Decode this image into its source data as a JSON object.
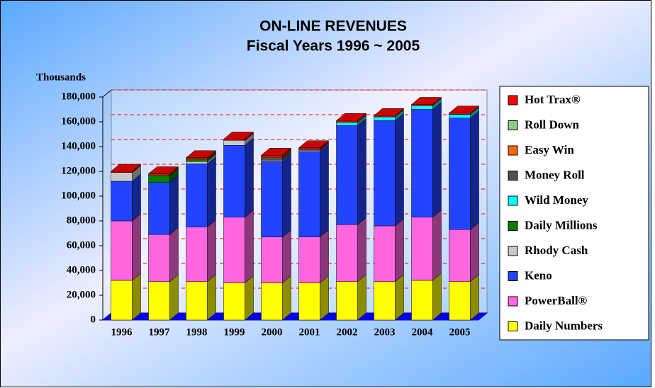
{
  "chart_data": {
    "type": "bar3d_stacked",
    "title": "ON-LINE REVENUES",
    "subtitle": "Fiscal Years 1996 ~ 2005",
    "y_label": "Thousands",
    "categories": [
      "1996",
      "1997",
      "1998",
      "1999",
      "2000",
      "2001",
      "2002",
      "2003",
      "2004",
      "2005"
    ],
    "series": [
      {
        "name": "Daily Numbers",
        "color": "#ffff00",
        "values": [
          32000,
          31000,
          31000,
          30000,
          30000,
          30000,
          31000,
          31000,
          32000,
          31000
        ]
      },
      {
        "name": "PowerBall®",
        "color": "#ff66e0",
        "values": [
          48000,
          38000,
          44000,
          53000,
          37000,
          37000,
          46000,
          45000,
          51000,
          42000
        ]
      },
      {
        "name": "Keno",
        "color": "#2244ff",
        "values": [
          32000,
          42000,
          51000,
          58000,
          61000,
          69000,
          80000,
          85000,
          87000,
          90000
        ]
      },
      {
        "name": "Rhody Cash",
        "color": "#c8c8c8",
        "values": [
          7000,
          0,
          2000,
          4000,
          1000,
          1000,
          0,
          0,
          0,
          0
        ]
      },
      {
        "name": "Daily Millions",
        "color": "#008000",
        "values": [
          0,
          6000,
          2000,
          0,
          0,
          0,
          0,
          0,
          0,
          0
        ]
      },
      {
        "name": "Wild Money",
        "color": "#00ffff",
        "values": [
          0,
          0,
          0,
          0,
          0,
          0,
          2000,
          3000,
          3000,
          3000
        ]
      },
      {
        "name": "Money Roll",
        "color": "#505050",
        "values": [
          0,
          0,
          0,
          0,
          2000,
          1000,
          0,
          0,
          0,
          0
        ]
      },
      {
        "name": "Easy Win",
        "color": "#ff6600",
        "values": [
          0,
          0,
          0,
          0,
          1000,
          0,
          0,
          0,
          0,
          0
        ]
      },
      {
        "name": "Roll Down",
        "color": "#88cc88",
        "values": [
          0,
          0,
          0,
          0,
          0,
          0,
          1000,
          0,
          0,
          0
        ]
      },
      {
        "name": "Hot Trax®",
        "color": "#ff0000",
        "values": [
          1000,
          1000,
          1000,
          1000,
          1000,
          1000,
          1000,
          1000,
          1000,
          1000
        ]
      }
    ],
    "ylim": [
      0,
      180000
    ],
    "yticks": [
      0,
      {
        "value": 20000,
        "label": "20,000"
      },
      {
        "value": 40000,
        "label": "40,000"
      },
      {
        "value": 60000,
        "label": "60,000"
      },
      {
        "value": 80000,
        "label": "80,000"
      },
      {
        "value": 100000,
        "label": "100,000"
      },
      {
        "value": 120000,
        "label": "120,000"
      },
      {
        "value": 140000,
        "label": "140,000"
      },
      {
        "value": 160000,
        "label": "160,000"
      },
      {
        "value": 180000,
        "label": "180,000"
      }
    ],
    "grid": true,
    "legend": "right"
  }
}
